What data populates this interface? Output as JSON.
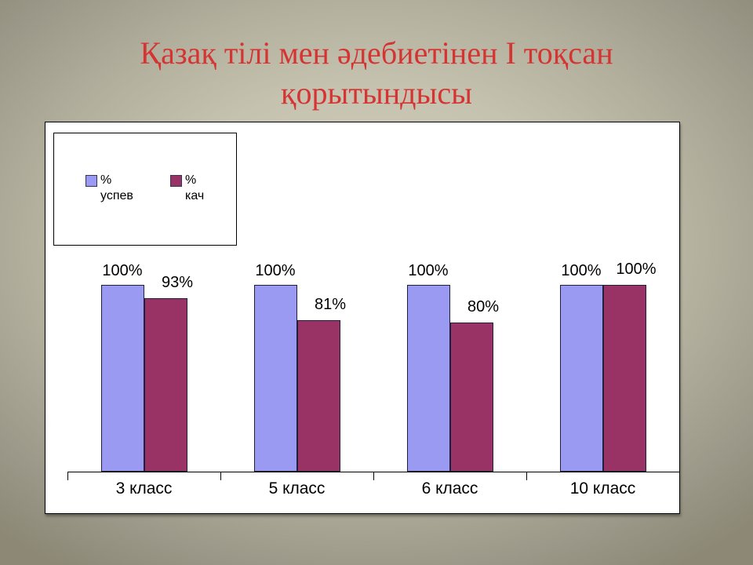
{
  "slide": {
    "title_line1": "Қазақ тілі мен әдебиетінен І тоқсан",
    "title_line2": "қорытындысы",
    "title_color": "#d53432",
    "background_center_color": "#d4d0bd",
    "background_edge_color": "#8c8875"
  },
  "chart_data": {
    "type": "bar",
    "title": "Қазақ тілі мен әдебиетінен І тоқсан қорытындысы",
    "categories": [
      "3 класс",
      "5 класс",
      "6 класс",
      "10 класс"
    ],
    "series": [
      {
        "name": "% успев",
        "color": "#9a9af2",
        "values": [
          100,
          100,
          100,
          100
        ],
        "labels": [
          "100%",
          "100%",
          "100%",
          "100%"
        ]
      },
      {
        "name": "% кач",
        "color": "#993366",
        "values": [
          93,
          81,
          80,
          100
        ],
        "labels": [
          "93%",
          "81%",
          "80%",
          "100%"
        ]
      }
    ],
    "ylim": [
      0,
      100
    ],
    "grid": false,
    "y_axis_visible": false,
    "legend_position": "top-left",
    "legend_items": [
      {
        "line1": "%",
        "line2": "успев",
        "color": "#9a9af2"
      },
      {
        "line1": "%",
        "line2": "кач",
        "color": "#993366"
      }
    ],
    "xlabel": "",
    "ylabel": ""
  }
}
